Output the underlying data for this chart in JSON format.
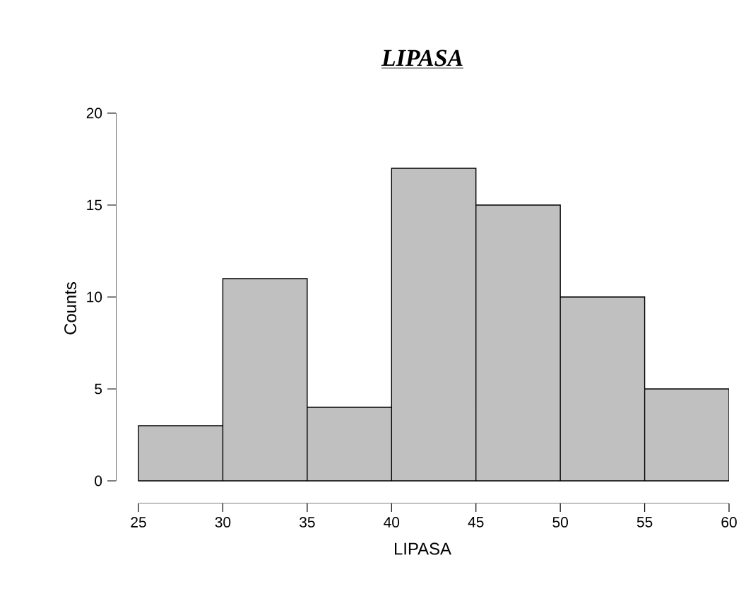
{
  "chart_data": {
    "type": "histogram",
    "title": "LIPASA",
    "xlabel": "LIPASA",
    "ylabel": "Counts",
    "bins": [
      25,
      30,
      35,
      40,
      45,
      50,
      55,
      60
    ],
    "values": [
      3,
      11,
      4,
      17,
      15,
      10,
      5
    ],
    "color": "#c0c0c0",
    "xlim": [
      25,
      60
    ],
    "ylim": [
      0,
      20
    ],
    "xticks": [
      25,
      30,
      35,
      40,
      45,
      50,
      55,
      60
    ],
    "yticks": [
      0,
      5,
      10,
      15,
      20
    ],
    "grid": false
  }
}
